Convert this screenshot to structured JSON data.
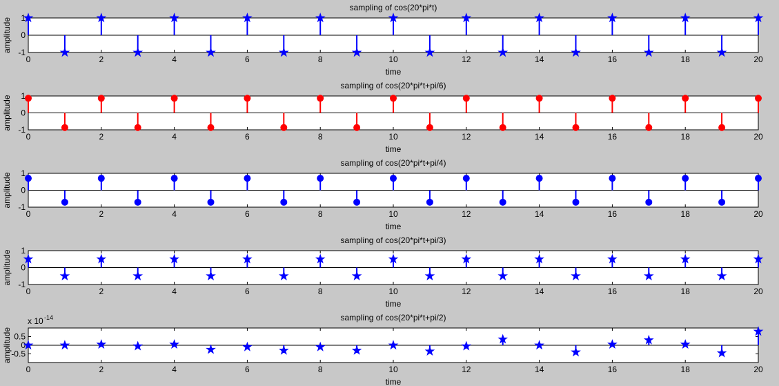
{
  "window": {
    "background": "#c8c8c8"
  },
  "chart_data": [
    {
      "type": "stem",
      "title": "sampling of cos(20*pi*t)",
      "xlabel": "time",
      "ylabel": "amplitude",
      "xlim": [
        0,
        20
      ],
      "ylim": [
        -1,
        1
      ],
      "xticks": [
        "0",
        "2",
        "4",
        "6",
        "8",
        "10",
        "12",
        "14",
        "16",
        "18",
        "20"
      ],
      "yticks": [
        "-1",
        "0",
        "1"
      ],
      "color": "#0000ff",
      "marker": "star",
      "x": [
        0,
        1,
        2,
        3,
        4,
        5,
        6,
        7,
        8,
        9,
        10,
        11,
        12,
        13,
        14,
        15,
        16,
        17,
        18,
        19,
        20
      ],
      "values": [
        1,
        -1,
        1,
        -1,
        1,
        -1,
        1,
        -1,
        1,
        -1,
        1,
        -1,
        1,
        -1,
        1,
        -1,
        1,
        -1,
        1,
        -1,
        1
      ]
    },
    {
      "type": "stem",
      "title": "sampling of cos(20*pi*t+pi/6)",
      "xlabel": "time",
      "ylabel": "amplitude",
      "xlim": [
        0,
        20
      ],
      "ylim": [
        -1,
        1
      ],
      "xticks": [
        "0",
        "2",
        "4",
        "6",
        "8",
        "10",
        "12",
        "14",
        "16",
        "18",
        "20"
      ],
      "yticks": [
        "-1",
        "0",
        "1"
      ],
      "color": "#ff0000",
      "marker": "circle",
      "x": [
        0,
        1,
        2,
        3,
        4,
        5,
        6,
        7,
        8,
        9,
        10,
        11,
        12,
        13,
        14,
        15,
        16,
        17,
        18,
        19,
        20
      ],
      "values": [
        0.866,
        -0.866,
        0.866,
        -0.866,
        0.866,
        -0.866,
        0.866,
        -0.866,
        0.866,
        -0.866,
        0.866,
        -0.866,
        0.866,
        -0.866,
        0.866,
        -0.866,
        0.866,
        -0.866,
        0.866,
        -0.866,
        0.866
      ]
    },
    {
      "type": "stem",
      "title": "sampling of cos(20*pi*t+pi/4)",
      "xlabel": "time",
      "ylabel": "amplitude",
      "xlim": [
        0,
        20
      ],
      "ylim": [
        -1,
        1
      ],
      "xticks": [
        "0",
        "2",
        "4",
        "6",
        "8",
        "10",
        "12",
        "14",
        "16",
        "18",
        "20"
      ],
      "yticks": [
        "-1",
        "0",
        "1"
      ],
      "color": "#0000ff",
      "marker": "circle",
      "x": [
        0,
        1,
        2,
        3,
        4,
        5,
        6,
        7,
        8,
        9,
        10,
        11,
        12,
        13,
        14,
        15,
        16,
        17,
        18,
        19,
        20
      ],
      "values": [
        0.707,
        -0.707,
        0.707,
        -0.707,
        0.707,
        -0.707,
        0.707,
        -0.707,
        0.707,
        -0.707,
        0.707,
        -0.707,
        0.707,
        -0.707,
        0.707,
        -0.707,
        0.707,
        -0.707,
        0.707,
        -0.707,
        0.707
      ]
    },
    {
      "type": "stem",
      "title": "sampling of cos(20*pi*t+pi/3)",
      "xlabel": "time",
      "ylabel": "amplitude",
      "xlim": [
        0,
        20
      ],
      "ylim": [
        -1,
        1
      ],
      "xticks": [
        "0",
        "2",
        "4",
        "6",
        "8",
        "10",
        "12",
        "14",
        "16",
        "18",
        "20"
      ],
      "yticks": [
        "-1",
        "0",
        "1"
      ],
      "color": "#0000ff",
      "marker": "star",
      "x": [
        0,
        1,
        2,
        3,
        4,
        5,
        6,
        7,
        8,
        9,
        10,
        11,
        12,
        13,
        14,
        15,
        16,
        17,
        18,
        19,
        20
      ],
      "values": [
        0.5,
        -0.5,
        0.5,
        -0.5,
        0.5,
        -0.5,
        0.5,
        -0.5,
        0.5,
        -0.5,
        0.5,
        -0.5,
        0.5,
        -0.5,
        0.5,
        -0.5,
        0.5,
        -0.5,
        0.5,
        -0.5,
        0.5
      ]
    },
    {
      "type": "stem",
      "title": "sampling of cos(20*pi*t+pi/2)",
      "xlabel": "time",
      "ylabel": "amplitude",
      "scale_label": "x 10",
      "scale_exponent": "-14",
      "xlim": [
        0,
        20
      ],
      "ylim": [
        -1,
        1
      ],
      "xticks": [
        "0",
        "2",
        "4",
        "6",
        "8",
        "10",
        "12",
        "14",
        "16",
        "18",
        "20"
      ],
      "yticks": [
        "-0.5",
        "0",
        "0.5"
      ],
      "ytick_values": [
        -0.5,
        0,
        0.5
      ],
      "color": "#0000ff",
      "marker": "star",
      "x": [
        0,
        1,
        2,
        3,
        4,
        5,
        6,
        7,
        8,
        9,
        10,
        11,
        12,
        13,
        14,
        15,
        16,
        17,
        18,
        19,
        20
      ],
      "values": [
        0.0,
        0.0,
        0.05,
        -0.05,
        0.05,
        -0.25,
        -0.1,
        -0.3,
        -0.1,
        -0.3,
        0.0,
        -0.35,
        -0.05,
        0.35,
        0.0,
        -0.4,
        0.05,
        0.3,
        0.05,
        -0.45,
        0.8
      ]
    }
  ]
}
